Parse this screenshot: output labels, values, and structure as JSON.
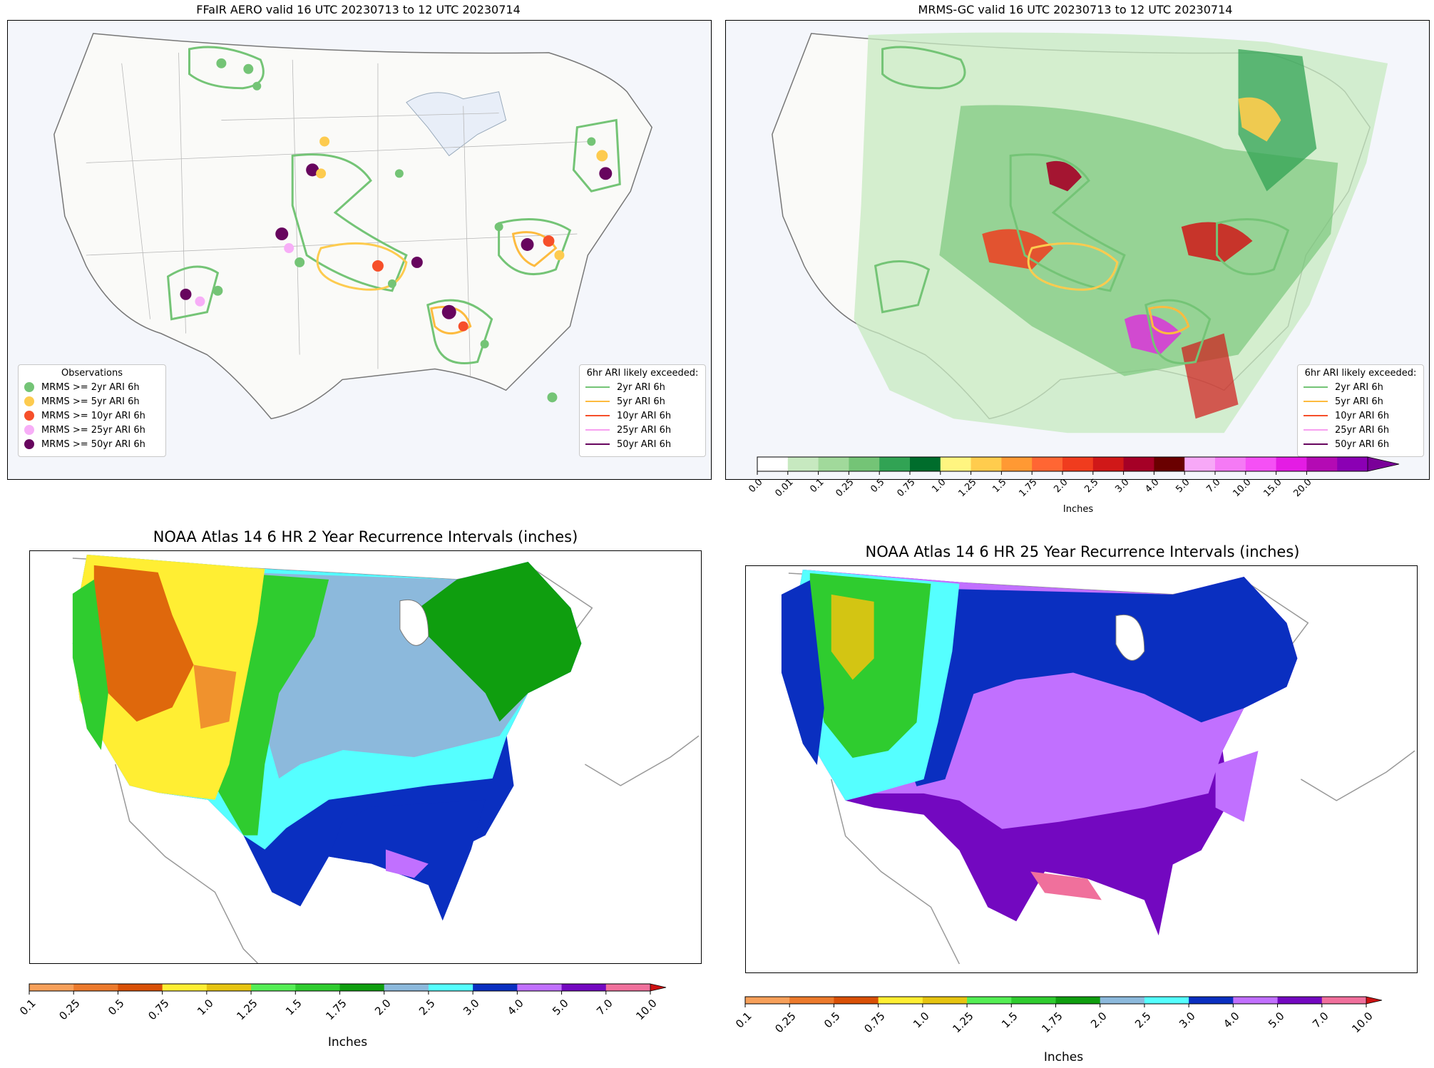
{
  "panels": {
    "ffair": {
      "title": "FFaIR AERO valid 16 UTC 20230713 to 12 UTC 20230714",
      "obs_legend": {
        "title": "Observations",
        "items": [
          {
            "label": "MRMS >= 2yr ARI 6h",
            "color": "#74c476"
          },
          {
            "label": "MRMS >= 5yr ARI 6h",
            "color": "#fdcb4f"
          },
          {
            "label": "MRMS >= 10yr ARI 6h",
            "color": "#f64f2a"
          },
          {
            "label": "MRMS >= 25yr ARI 6h",
            "color": "#f7aef7"
          },
          {
            "label": "MRMS >= 50yr ARI 6h",
            "color": "#67055e"
          }
        ]
      },
      "ari_legend": {
        "title": "6hr ARI likely exceeded:",
        "items": [
          {
            "label": "2yr ARI 6h",
            "color": "#74c476"
          },
          {
            "label": "5yr ARI 6h",
            "color": "#fdbb3f"
          },
          {
            "label": "10yr ARI 6h",
            "color": "#f64f2a"
          },
          {
            "label": "25yr ARI 6h",
            "color": "#f7a0f0"
          },
          {
            "label": "50yr ARI 6h",
            "color": "#67055e"
          }
        ]
      }
    },
    "mrms": {
      "title": "MRMS-GC valid 16 UTC 20230713 to 12 UTC 20230714",
      "ari_legend": {
        "title": "6hr ARI likely exceeded:",
        "items": [
          {
            "label": "2yr ARI 6h",
            "color": "#74c476"
          },
          {
            "label": "5yr ARI 6h",
            "color": "#fdbb3f"
          },
          {
            "label": "10yr ARI 6h",
            "color": "#f64f2a"
          },
          {
            "label": "25yr ARI 6h",
            "color": "#f7a0f0"
          },
          {
            "label": "50yr ARI 6h",
            "color": "#67055e"
          }
        ]
      },
      "colorbar": {
        "label": "Inches",
        "ticks": [
          "0.0",
          "0.01",
          "0.1",
          "0.25",
          "0.5",
          "0.75",
          "1.0",
          "1.25",
          "1.5",
          "1.75",
          "2.0",
          "2.5",
          "3.0",
          "4.0",
          "5.0",
          "7.0",
          "10.0",
          "15.0",
          "20.0"
        ],
        "colors": [
          "#ffffff",
          "#c7e9c0",
          "#a1d99b",
          "#74c476",
          "#31a354",
          "#006d2c",
          "#fff580",
          "#ffcc4d",
          "#ff9933",
          "#ff6633",
          "#f03c1e",
          "#d01818",
          "#a50026",
          "#6a0000",
          "#f7a8f7",
          "#f57af5",
          "#f550f5",
          "#e41ce4",
          "#b40ab4",
          "#8b00b4"
        ],
        "extend_color": "#7a0099"
      }
    },
    "atlas2": {
      "title": "NOAA Atlas 14 6 HR 2 Year Recurrence Intervals (inches)",
      "colorbar": {
        "label": "Inches",
        "ticks": [
          "0.1",
          "0.25",
          "0.5",
          "0.75",
          "1.0",
          "1.25",
          "1.5",
          "1.75",
          "2.0",
          "2.5",
          "3.0",
          "4.0",
          "5.0",
          "7.0",
          "10.0"
        ],
        "colors": [
          "#f7a05a",
          "#ec7a2c",
          "#d95006",
          "#ffee33",
          "#e6c411",
          "#55ee55",
          "#2fcc2f",
          "#0f9e0f",
          "#8cb9dc",
          "#55ffff",
          "#0a2fc0",
          "#c170ff",
          "#7308c0",
          "#f0709c"
        ],
        "extend_color": "#cc1111"
      }
    },
    "atlas25": {
      "title": "NOAA Atlas 14 6 HR 25 Year Recurrence Intervals (inches)",
      "colorbar": {
        "label": "Inches",
        "ticks": [
          "0.1",
          "0.25",
          "0.5",
          "0.75",
          "1.0",
          "1.25",
          "1.5",
          "1.75",
          "2.0",
          "2.5",
          "3.0",
          "4.0",
          "5.0",
          "7.0",
          "10.0"
        ],
        "colors": [
          "#f7a05a",
          "#ec7a2c",
          "#d95006",
          "#ffee33",
          "#e6c411",
          "#55ee55",
          "#2fcc2f",
          "#0f9e0f",
          "#8cb9dc",
          "#55ffff",
          "#0a2fc0",
          "#c170ff",
          "#7308c0",
          "#f0709c"
        ],
        "extend_color": "#cc1111"
      }
    }
  }
}
